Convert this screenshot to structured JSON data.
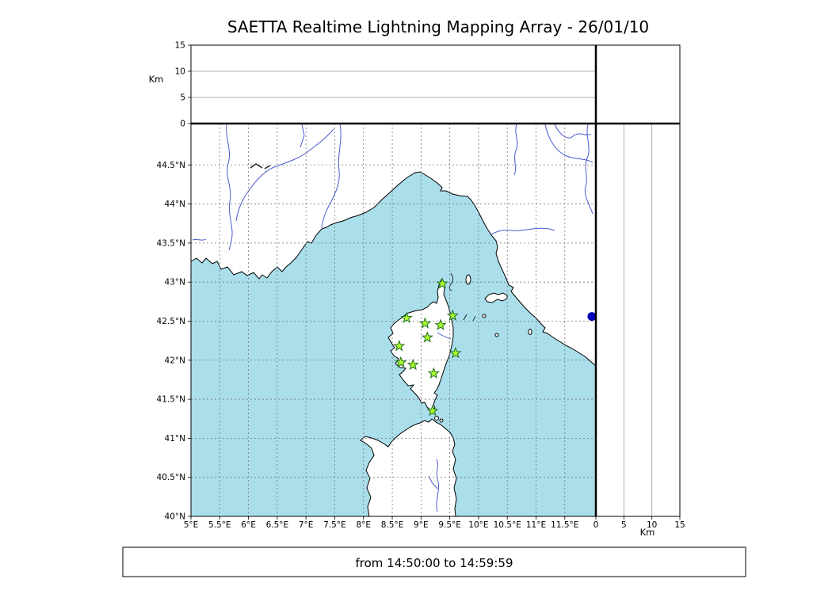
{
  "title": "SAETTA Realtime Lightning Mapping Array - 26/01/10",
  "footer": {
    "time_range": "from 14:50:00 to 14:59:59"
  },
  "map": {
    "lon_min": 5.0,
    "lon_max": 12.04,
    "lat_min": 40.0,
    "lat_max": 45.03,
    "lon_ticks": [
      {
        "value": 5,
        "label": "5°E"
      },
      {
        "value": 5.5,
        "label": "5.5°E"
      },
      {
        "value": 6,
        "label": "6°E"
      },
      {
        "value": 6.5,
        "label": "6.5°E"
      },
      {
        "value": 7,
        "label": "7°E"
      },
      {
        "value": 7.5,
        "label": "7.5°E"
      },
      {
        "value": 8,
        "label": "8°E"
      },
      {
        "value": 8.5,
        "label": "8.5°E"
      },
      {
        "value": 9,
        "label": "9°E"
      },
      {
        "value": 9.5,
        "label": "9.5°E"
      },
      {
        "value": 10,
        "label": "10°E"
      },
      {
        "value": 10.5,
        "label": "10.5°E"
      },
      {
        "value": 11,
        "label": "11°E"
      },
      {
        "value": 11.5,
        "label": "11.5°E"
      }
    ],
    "lat_ticks": [
      {
        "value": 40,
        "label": "40°N"
      },
      {
        "value": 40.5,
        "label": "40.5°N"
      },
      {
        "value": 41,
        "label": "41°N"
      },
      {
        "value": 41.5,
        "label": "41.5°N"
      },
      {
        "value": 42,
        "label": "42°N"
      },
      {
        "value": 42.5,
        "label": "42.5°N"
      },
      {
        "value": 43,
        "label": "43°N"
      },
      {
        "value": 43.5,
        "label": "43.5°N"
      },
      {
        "value": 44,
        "label": "44°N"
      },
      {
        "value": 44.5,
        "label": "44.5°N"
      }
    ]
  },
  "altitude_axis": {
    "label": "Km",
    "max_km": 15,
    "ticks": [
      {
        "value": 0,
        "label": "0"
      },
      {
        "value": 5,
        "label": "5"
      },
      {
        "value": 10,
        "label": "10"
      },
      {
        "value": 15,
        "label": "15"
      }
    ],
    "grid_values": [
      5,
      10
    ]
  },
  "stations": [
    {
      "lon": 9.37,
      "lat": 42.98
    },
    {
      "lon": 8.75,
      "lat": 42.54
    },
    {
      "lon": 9.07,
      "lat": 42.47
    },
    {
      "lon": 9.34,
      "lat": 42.45
    },
    {
      "lon": 9.55,
      "lat": 42.57
    },
    {
      "lon": 9.11,
      "lat": 42.29
    },
    {
      "lon": 8.62,
      "lat": 42.18
    },
    {
      "lon": 9.6,
      "lat": 42.09
    },
    {
      "lon": 8.65,
      "lat": 41.97
    },
    {
      "lon": 8.86,
      "lat": 41.94
    },
    {
      "lon": 9.22,
      "lat": 41.83
    },
    {
      "lon": 9.2,
      "lat": 41.35
    }
  ],
  "event_marker": {
    "lon": 11.97,
    "lat": 42.56
  },
  "colors": {
    "sea": "#aadeeb",
    "land": "#ffffff",
    "coast": "#000000",
    "river": "#4a5bd0",
    "grid": "#777777",
    "panel_grid": "#999999",
    "station_fill": "#adff2f",
    "station_edge": "#1f6f1f",
    "event_marker": "#0000bb"
  }
}
